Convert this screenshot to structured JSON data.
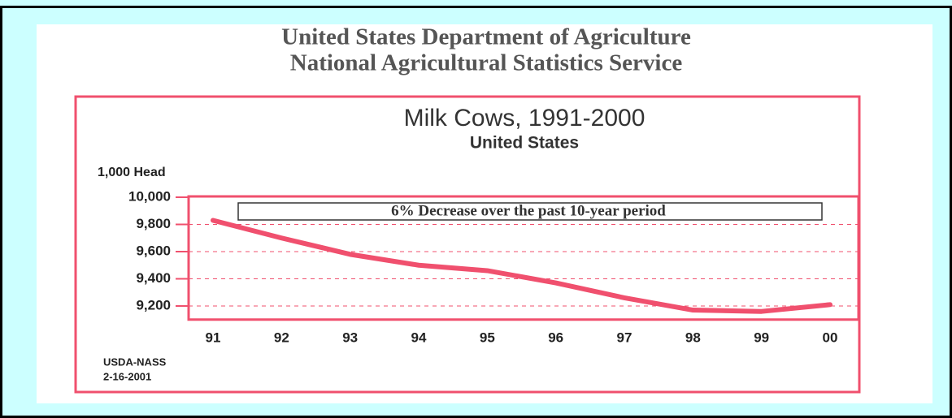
{
  "header": {
    "line1": "United States Department of Agriculture",
    "line2": "National Agricultural Statistics Service"
  },
  "chart_data": {
    "type": "line",
    "title": "Milk Cows, 1991-2000",
    "subtitle": "United States",
    "y_label": "1,000 Head",
    "annotation": "6% Decrease over the past 10-year period",
    "source": [
      "USDA-NASS",
      "2-16-2001"
    ],
    "categories": [
      "91",
      "92",
      "93",
      "94",
      "95",
      "96",
      "97",
      "98",
      "99",
      "00"
    ],
    "values": [
      9830,
      9700,
      9580,
      9500,
      9460,
      9370,
      9260,
      9170,
      9160,
      9210
    ],
    "color": "#f0506e",
    "ylim": [
      9100,
      10000
    ],
    "yticks": [
      {
        "value": 9200,
        "label": "9,200"
      },
      {
        "value": 9400,
        "label": "9,400"
      },
      {
        "value": 9600,
        "label": "9,600"
      },
      {
        "value": 9800,
        "label": "9,800"
      },
      {
        "value": 10000,
        "label": "10,000"
      }
    ],
    "grid": true
  }
}
